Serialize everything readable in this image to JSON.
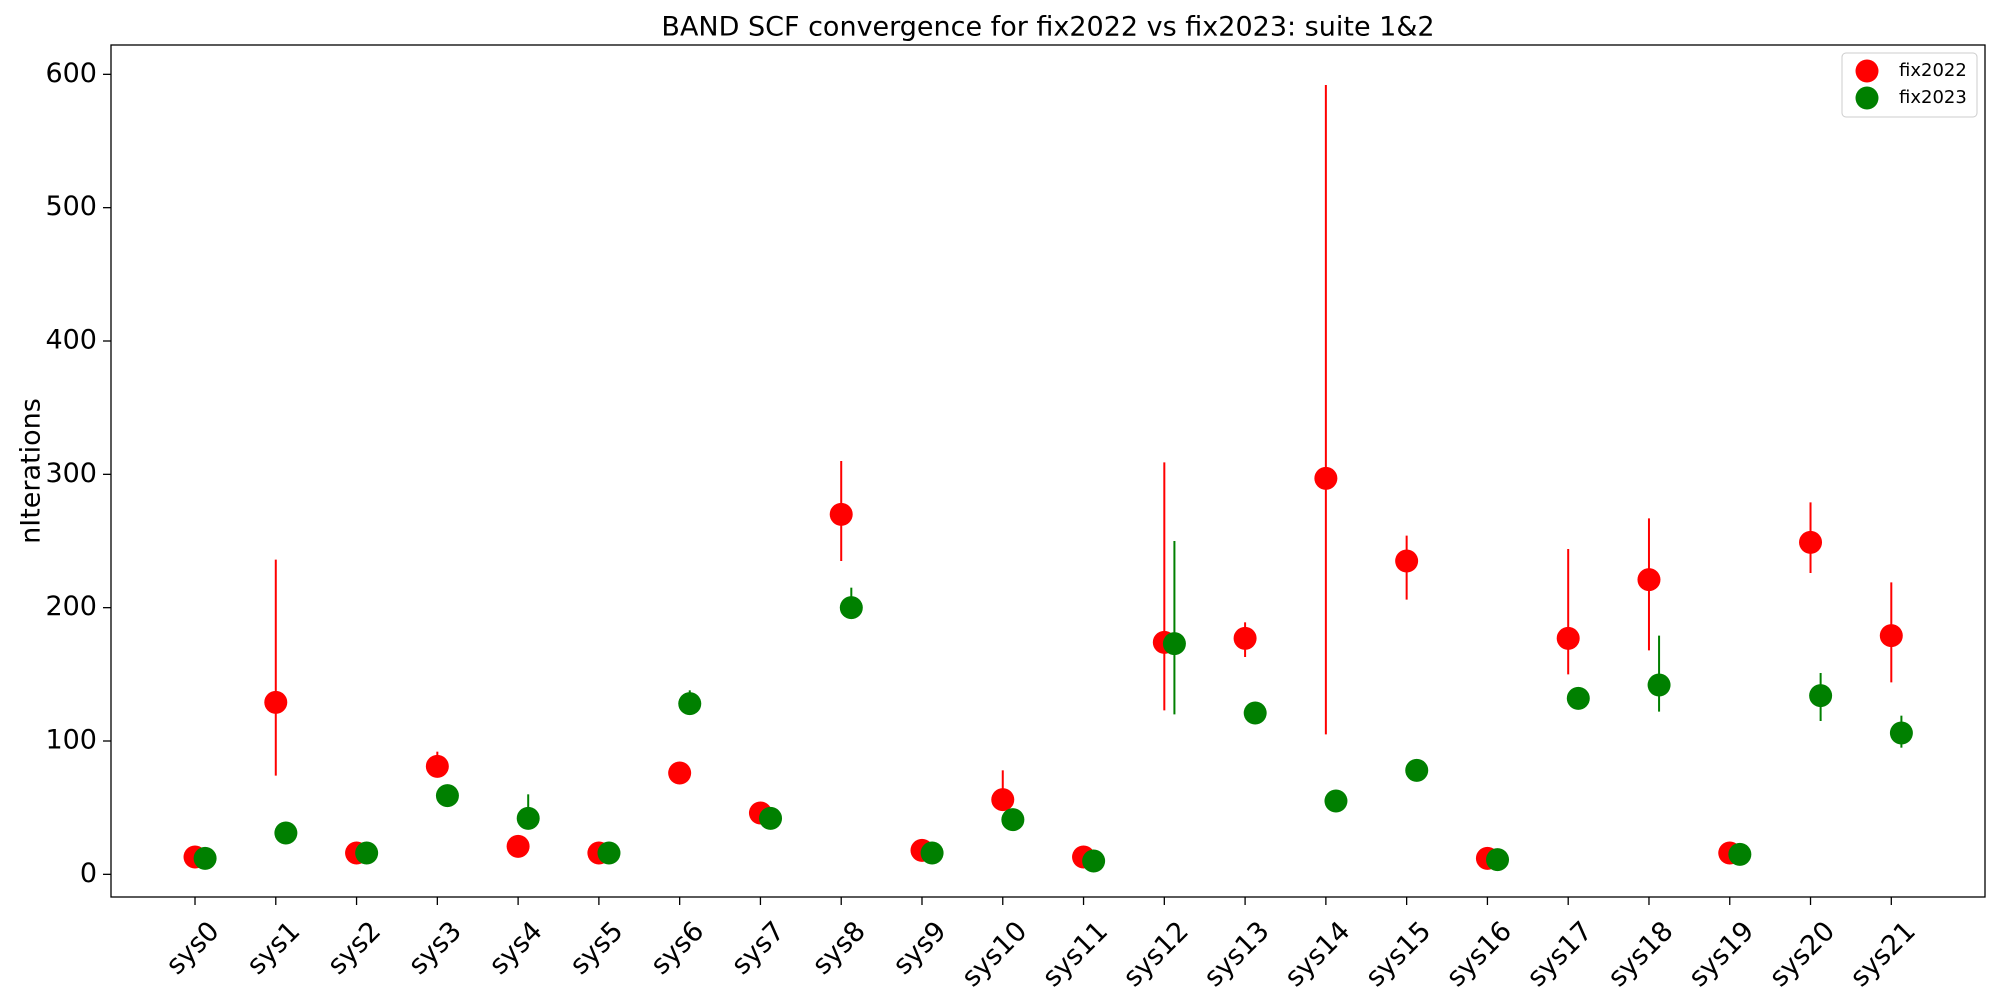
{
  "chart_data": {
    "type": "errorbar",
    "title": "BAND SCF convergence for fix2022 vs fix2023: suite 1&2",
    "y_label": "nIterations",
    "categories": [
      "sys0",
      "sys1",
      "sys2",
      "sys3",
      "sys4",
      "sys5",
      "sys6",
      "sys7",
      "sys8",
      "sys9",
      "sys10",
      "sys11",
      "sys12",
      "sys13",
      "sys14",
      "sys15",
      "sys16",
      "sys17",
      "sys18",
      "sys19",
      "sys20",
      "sys21"
    ],
    "series": [
      {
        "name": "fix2022",
        "color": "red",
        "values": [
          13,
          129,
          16,
          81,
          21,
          16,
          76,
          46,
          270,
          18,
          56,
          13,
          174,
          177,
          297,
          235,
          12,
          177,
          221,
          16,
          249,
          179
        ],
        "min": [
          null,
          74,
          null,
          76,
          null,
          null,
          null,
          null,
          235,
          null,
          50,
          null,
          123,
          163,
          105,
          206,
          null,
          150,
          168,
          null,
          226,
          144
        ],
        "max": [
          null,
          236,
          null,
          92,
          null,
          null,
          null,
          null,
          310,
          null,
          78,
          null,
          309,
          189,
          592,
          254,
          null,
          244,
          267,
          null,
          279,
          219
        ]
      },
      {
        "name": "fix2023",
        "color": "green",
        "values": [
          12,
          31,
          16,
          59,
          42,
          16,
          128,
          42,
          200,
          16,
          41,
          10,
          173,
          121,
          55,
          78,
          11,
          132,
          142,
          15,
          134,
          106
        ],
        "min": [
          null,
          null,
          null,
          null,
          38,
          null,
          124,
          null,
          193,
          null,
          null,
          null,
          120,
          null,
          null,
          null,
          null,
          null,
          122,
          null,
          115,
          95
        ],
        "max": [
          null,
          null,
          null,
          null,
          60,
          null,
          138,
          null,
          215,
          null,
          null,
          null,
          250,
          null,
          null,
          null,
          null,
          null,
          179,
          null,
          151,
          119
        ]
      }
    ],
    "ylim": [
      -17,
      622
    ],
    "yticks": [
      0,
      100,
      200,
      300,
      400,
      500,
      600
    ],
    "legend": "upper right"
  }
}
